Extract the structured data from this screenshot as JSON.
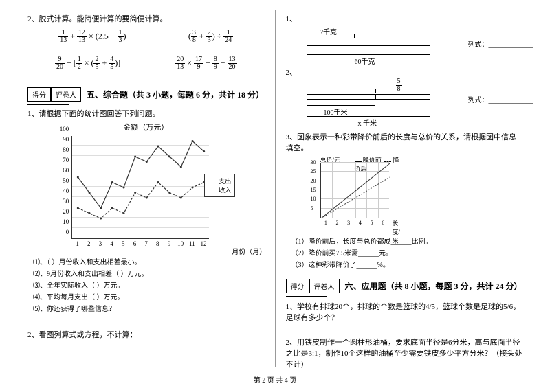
{
  "left": {
    "q2_title": "2、脱式计算。能简便计算的要简便计算。",
    "formulas": {
      "f1": "1/13 + 12/13 × (2.5 − 1/3)",
      "f2": "(3/8 + 2/3) ÷ 1/24",
      "f3": "9/20 − [1/2 × (2/5 + 4/5)]",
      "f4": "20/13 × 17/9 − 8/9 − 13/20"
    },
    "score_label_1": "得分",
    "score_label_2": "评卷人",
    "section5": "五、综合题（共 3 小题，每题 6 分，共计 18 分）",
    "q1_title": "1、请根据下面的统计图回答下列问题。",
    "chart_title": "金额（万元）",
    "chart": {
      "y_ticks": [
        0,
        10,
        20,
        30,
        40,
        50,
        60,
        70,
        80,
        90,
        100
      ],
      "y_max": 100,
      "x_labels": [
        "1",
        "2",
        "3",
        "4",
        "5",
        "6",
        "7",
        "8",
        "9",
        "10",
        "11",
        "12"
      ],
      "x_axis_label": "月份（月）",
      "legend": {
        "dashed": "支出",
        "solid": "收入"
      },
      "income": [
        60,
        45,
        30,
        55,
        50,
        80,
        75,
        90,
        80,
        70,
        95,
        85
      ],
      "expense": [
        30,
        25,
        20,
        30,
        25,
        45,
        40,
        55,
        45,
        40,
        50,
        55
      ],
      "line_color": "#333",
      "grid_color": "#dddddd",
      "bg": "#ffffff"
    },
    "sub_questions": [
      "⑴、（ ）月份收入和支出相差最小。",
      "⑵、9月份收入和支出相差（ ）万元。",
      "⑶、全年实际收入（ ）万元。",
      "⑷、平均每月支出（ ）万元。",
      "⑸、你还获得了哪些信息？"
    ],
    "sub_blank": "_______________________________________________",
    "q2_bottom": "2、看图列算式或方程，不计算："
  },
  "right": {
    "q1": "1、",
    "diagram1": {
      "top_label": "?千克",
      "bottom_label": "60千克",
      "side": "列式：_____________"
    },
    "q2": "2、",
    "diagram2": {
      "top_label": "5/8",
      "mid_label": "100千米",
      "bottom_label": "x 千米",
      "side": "列式：_____________"
    },
    "q3_title": "3、图象表示一种彩带降价前后的长度与总价的关系，请根据图中信息填空。",
    "chart2": {
      "y_label": "总价/元",
      "legend": {
        "solid": "降价前",
        "dashed": "降价后"
      },
      "x_label": "长度/米",
      "x_ticks": [
        "1",
        "2",
        "3",
        "4",
        "5",
        "6"
      ],
      "y_ticks": [
        "5",
        "10",
        "15",
        "20",
        "25",
        "30"
      ],
      "line1": {
        "slope": 5,
        "color": "#333"
      },
      "line2": {
        "slope": 3.75,
        "color": "#333"
      }
    },
    "sub_q3": [
      "（1）降价前后，长度与总价都成______比例。",
      "（2）降价前买7.5米需______元。",
      "（3）这种彩带降价了______%。"
    ],
    "score_label_1": "得分",
    "score_label_2": "评卷人",
    "section6": "六、应用题（共 8 小题，每题 3 分，共计 24 分）",
    "app_q1": "1、学校有排球20个，排球的个数是篮球的4/5，篮球个数是足球的5/6，足球有多少个？",
    "app_q2": "2、用铁皮制作一个圆柱形油桶，要求底面半径是6分米，高与底面半径之比是3:1，制作10个这样的油桶至少需要铁皮多少平方分米？（接头处不计）"
  },
  "footer": "第 2 页 共 4 页"
}
